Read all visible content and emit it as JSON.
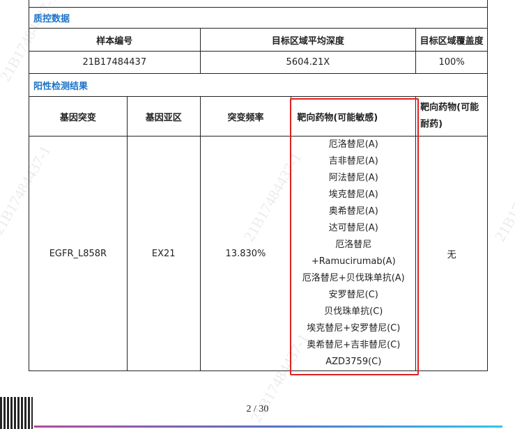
{
  "watermark": "21B17484437-1",
  "qc": {
    "title": "质控数据",
    "headers": [
      "样本编号",
      "目标区域平均深度",
      "目标区域覆盖度"
    ],
    "values": [
      "21B17484437",
      "5604.21X",
      "100%"
    ]
  },
  "positive": {
    "title": "阳性检测结果",
    "headers": [
      "基因突变",
      "基因亚区",
      "突变频率",
      "靶向药物(可能敏感)",
      "靶向药物(可能耐药)"
    ],
    "row": {
      "mutation": "EGFR_L858R",
      "subregion": "EX21",
      "frequency": "13.830%",
      "sensitive": [
        "厄洛替尼(A)",
        "吉非替尼(A)",
        "阿法替尼(A)",
        "埃克替尼(A)",
        "奥希替尼(A)",
        "达可替尼(A)",
        "厄洛替尼",
        "+Ramucirumab(A)",
        "厄洛替尼+贝伐珠单抗(A)",
        "安罗替尼(C)",
        "贝伐珠单抗(C)",
        "埃克替尼+安罗替尼(C)",
        "奥希替尼+吉非替尼(C)",
        "AZD3759(C)"
      ],
      "resistant": "无"
    }
  },
  "footer": {
    "page": "2 / 30"
  },
  "colors": {
    "section_title": "#1a73c8",
    "highlight": "#e02020"
  }
}
